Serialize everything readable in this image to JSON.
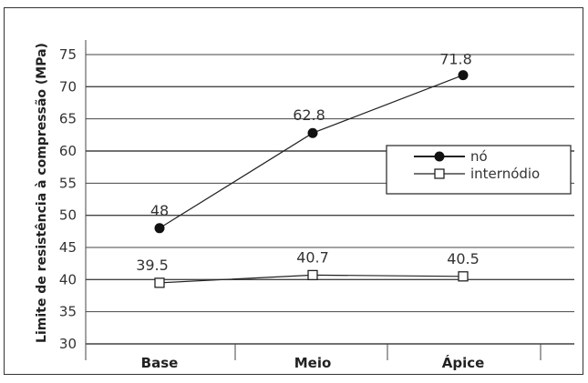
{
  "chart_data": {
    "type": "line",
    "categories": [
      "Base",
      "Meio",
      "Ápice"
    ],
    "ylabel": "Limite de resistência à compressão (MPa)",
    "xlabel": "",
    "ylim": [
      30,
      75
    ],
    "yticks": [
      30,
      35,
      40,
      45,
      50,
      55,
      60,
      65,
      70,
      75
    ],
    "grid": "horizontal",
    "legend_position": "right",
    "series": [
      {
        "name": "nó",
        "marker": "filled-circle",
        "values": [
          48,
          62.8,
          71.8
        ],
        "labels": [
          "48",
          "62.8",
          "71.8"
        ]
      },
      {
        "name": "internódio",
        "marker": "open-square",
        "values": [
          39.5,
          40.7,
          40.5
        ],
        "labels": [
          "39.5",
          "40.7",
          "40.5"
        ]
      }
    ]
  }
}
